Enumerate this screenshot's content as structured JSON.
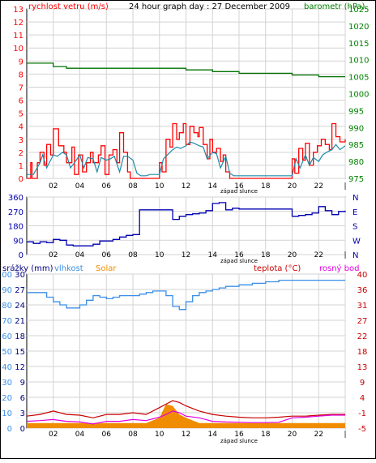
{
  "colors": {
    "wind_avg": "#1e8aa8",
    "wind_gust": "#ff0000",
    "pressure": "#007000",
    "direction": "#0000b0",
    "humidity": "#3a8ee8",
    "temperature": "#c80000",
    "dewpoint": "#e000e0",
    "solar": "#f08c00",
    "rain": "#000080",
    "left_axis_1": "#ff0000",
    "right_axis_1": "#008000",
    "left_axis_3": "#3a8ee8",
    "right_axis_3": "#c80000"
  },
  "chart_data": [
    {
      "type": "line",
      "title": "24 hour graph day : 27 December 2009",
      "left_label": "rychlost vetru (m/s)",
      "right_label": "barometr (hPa)",
      "xlabel": "západ slunce",
      "x_ticks": [
        "02",
        "04",
        "06",
        "08",
        "10",
        "12",
        "14",
        "16",
        "18",
        "20",
        "22",
        "|"
      ],
      "ylim_left": [
        0,
        13
      ],
      "yticks_left": [
        "0",
        "1",
        "2",
        "3",
        "4",
        "5",
        "6",
        "7",
        "8",
        "9",
        "10",
        "11",
        "12",
        "13"
      ],
      "ylim_right": [
        975,
        1025
      ],
      "yticks_right": [
        "975",
        "980",
        "985",
        "990",
        "995",
        "1000",
        "1005",
        "1010",
        "1015",
        "1020",
        "1025"
      ],
      "grid": true,
      "series": [
        {
          "key": "wind_avg",
          "x": [
            0,
            0.3,
            0.5,
            1,
            1.2,
            1.5,
            2,
            2.3,
            2.7,
            3,
            3.3,
            3.6,
            4,
            4.3,
            4.6,
            5,
            5.3,
            5.6,
            6,
            6.3,
            6.6,
            7,
            7.3,
            7.6,
            8,
            8.3,
            8.6,
            9,
            9.3,
            9.6,
            10,
            10.3,
            10.6,
            11,
            11.3,
            11.6,
            12,
            12.3,
            12.6,
            13,
            13.3,
            13.6,
            14,
            14.3,
            14.6,
            15,
            15.3,
            15.6,
            16,
            16.5,
            17,
            17.5,
            18,
            18.5,
            19,
            19.5,
            20,
            20.3,
            20.6,
            21,
            21.3,
            21.6,
            22,
            22.3,
            22.6,
            23,
            23.3,
            23.6,
            24
          ],
          "y": [
            0.3,
            0.3,
            0.3,
            1.2,
            1.8,
            0.8,
            1.8,
            1.7,
            2,
            1.8,
            0.8,
            1.2,
            1.8,
            0.8,
            1.6,
            1.5,
            0.5,
            1.6,
            1.4,
            1.5,
            1.7,
            0.5,
            1.7,
            1.7,
            1.4,
            0.4,
            0.2,
            0.2,
            0.3,
            0.3,
            0.3,
            1.5,
            1.8,
            2.2,
            2.4,
            2.3,
            2.5,
            2.8,
            2.7,
            2.5,
            2.4,
            1.5,
            2,
            1.9,
            0.8,
            1.7,
            0.4,
            0.2,
            0.2,
            0.2,
            0.2,
            0.2,
            0.2,
            0.2,
            0.2,
            0.2,
            0.2,
            1.5,
            0.8,
            1.8,
            1,
            1.6,
            1.3,
            1.8,
            2,
            2.2,
            2.6,
            2.2,
            2.5
          ]
        },
        {
          "key": "wind_gust",
          "x": [
            0,
            0.3,
            0.4,
            0.8,
            1,
            1.3,
            1.5,
            1.8,
            2,
            2.4,
            2.8,
            3,
            3.4,
            3.6,
            3.9,
            4.2,
            4.5,
            4.8,
            5,
            5.4,
            5.6,
            5.9,
            6.2,
            6.5,
            6.8,
            7,
            7.3,
            7.6,
            7.8,
            8.2,
            8.5,
            9,
            9.5,
            10,
            10.2,
            10.5,
            10.8,
            11,
            11.3,
            11.5,
            11.8,
            12,
            12.3,
            12.6,
            12.9,
            13,
            13.3,
            13.6,
            13.8,
            14,
            14.3,
            14.6,
            14.8,
            15,
            15.3,
            15.6,
            16,
            17,
            18,
            19,
            20,
            20.2,
            20.5,
            20.8,
            21,
            21.3,
            21.6,
            21.9,
            22.2,
            22.5,
            22.8,
            23,
            23.3,
            23.6,
            24
          ],
          "y": [
            0,
            1.2,
            0,
            1.2,
            2,
            1,
            2.6,
            1.8,
            3.8,
            2.5,
            2,
            1.2,
            2.4,
            0.3,
            1.8,
            0.5,
            1.2,
            2,
            1.2,
            1.8,
            2.5,
            0.3,
            1.8,
            2.2,
            1.2,
            3.5,
            2,
            0.5,
            0,
            0,
            0,
            0,
            0,
            1.2,
            0.5,
            3,
            2.4,
            4.2,
            3,
            3.5,
            4.2,
            2.6,
            4,
            3.5,
            3.2,
            3.9,
            2.6,
            1.5,
            3,
            2,
            2.3,
            1.3,
            1.8,
            0.5,
            0,
            0,
            0,
            0,
            0,
            0,
            1.5,
            0.4,
            2.3,
            1.4,
            2.7,
            1,
            2,
            2.5,
            3,
            2.6,
            2.2,
            4.2,
            3.2,
            2.8,
            3
          ]
        },
        {
          "key": "pressure",
          "x": [
            0,
            1,
            2,
            3,
            4,
            6,
            8,
            10,
            12,
            14,
            16,
            18,
            20,
            22,
            24
          ],
          "y": [
            1009,
            1009,
            1008,
            1007.5,
            1007.5,
            1007.5,
            1007.5,
            1007.5,
            1007,
            1006.5,
            1006,
            1006,
            1005.5,
            1005,
            1005
          ]
        }
      ]
    },
    {
      "type": "line",
      "xlabel": "západ slunce",
      "x_ticks": [
        "02",
        "04",
        "06",
        "08",
        "10",
        "12",
        "14",
        "16",
        "18",
        "20",
        "22",
        "|"
      ],
      "ylim_left": [
        0,
        360
      ],
      "yticks_left": [
        "0",
        "90",
        "180",
        "270",
        "360"
      ],
      "yticks_right": [
        "N",
        "W",
        "S",
        "E",
        "N"
      ],
      "grid": true,
      "series": [
        {
          "key": "direction",
          "x": [
            0,
            0.5,
            1,
            1.5,
            2,
            2.5,
            3,
            3.5,
            4,
            4.5,
            5,
            5.5,
            6,
            6.5,
            7,
            7.5,
            8,
            8.5,
            9,
            9.5,
            10,
            10.5,
            11,
            11.5,
            12,
            12.5,
            13,
            13.5,
            14,
            14.5,
            15,
            15.5,
            16,
            16.5,
            17,
            17.5,
            18,
            18.5,
            19,
            19.5,
            20,
            20.5,
            21,
            21.5,
            22,
            22.5,
            23,
            23.5,
            24
          ],
          "y": [
            80,
            70,
            80,
            75,
            95,
            90,
            60,
            55,
            55,
            55,
            65,
            85,
            85,
            95,
            110,
            120,
            125,
            280,
            280,
            280,
            280,
            280,
            220,
            240,
            250,
            255,
            260,
            275,
            320,
            325,
            280,
            290,
            285,
            285,
            285,
            285,
            285,
            285,
            285,
            285,
            240,
            245,
            250,
            260,
            300,
            275,
            250,
            270,
            275
          ]
        }
      ]
    },
    {
      "type": "line",
      "xlabel": "západ slunce",
      "x_ticks": [
        "02",
        "04",
        "06",
        "08",
        "10",
        "12",
        "14",
        "16",
        "18",
        "20",
        "22",
        "|"
      ],
      "legend": {
        "rain": "srážky (mm)",
        "humidity": "vlhkost",
        "solar": "Solar",
        "temperature": "teplota (°C)",
        "dewpoint": "rosný bod"
      },
      "ylim_left": [
        0,
        100
      ],
      "yticks_left": [
        "0",
        "10",
        "20",
        "30",
        "40",
        "50",
        "60",
        "70",
        "80",
        "90",
        "100"
      ],
      "yticks_rain": [
        "0",
        "3",
        "6",
        "9",
        "12",
        "15",
        "18",
        "21",
        "24",
        "27",
        "30"
      ],
      "ylim_right": [
        -5,
        40
      ],
      "yticks_right": [
        "-5",
        "-1",
        "4",
        "9",
        "13",
        "18",
        "22",
        "27",
        "31",
        "36",
        "40"
      ],
      "grid": true,
      "series": [
        {
          "key": "humidity",
          "x": [
            0,
            0.5,
            1,
            1.5,
            2,
            2.5,
            3,
            3.5,
            4,
            4.5,
            5,
            5.5,
            6,
            6.5,
            7,
            7.5,
            8,
            8.5,
            9,
            9.5,
            10,
            10.5,
            11,
            11.5,
            12,
            12.5,
            13,
            13.5,
            14,
            14.5,
            15,
            15.5,
            16,
            16.5,
            17,
            17.5,
            18,
            18.5,
            19,
            19.5,
            20,
            21,
            22,
            23,
            24
          ],
          "y": [
            88,
            88,
            88,
            85,
            82,
            80,
            78,
            78,
            80,
            83,
            86,
            85,
            84,
            85,
            86,
            86,
            86,
            87,
            88,
            89,
            89,
            86,
            79,
            77,
            82,
            86,
            88,
            89,
            90,
            91,
            92,
            92,
            93,
            93,
            94,
            94,
            95,
            95,
            96,
            96,
            96,
            96,
            96,
            96,
            96
          ]
        },
        {
          "key": "temperature",
          "x": [
            0,
            1,
            2,
            3,
            4,
            5,
            6,
            7,
            8,
            9,
            10,
            10.5,
            11,
            11.5,
            12,
            13,
            14,
            15,
            16,
            17,
            18,
            19,
            20,
            21,
            22,
            23,
            24
          ],
          "y": [
            -1.5,
            -1,
            0,
            -1,
            -1.2,
            -2,
            -1,
            -1,
            -0.5,
            -1,
            1,
            2,
            3,
            2.5,
            1.5,
            0,
            -1,
            -1.5,
            -1.8,
            -2,
            -2,
            -1.8,
            -1.5,
            -1.5,
            -1.2,
            -1,
            -1
          ]
        },
        {
          "key": "dewpoint",
          "x": [
            0,
            1,
            2,
            3,
            4,
            5,
            6,
            7,
            8,
            9,
            10,
            10.5,
            11,
            11.5,
            12,
            13,
            14,
            15,
            16,
            17,
            18,
            19,
            20,
            21,
            22,
            23,
            24
          ],
          "y": [
            -3,
            -2.8,
            -2.5,
            -3,
            -3.2,
            -3.8,
            -3,
            -3,
            -2.5,
            -2.8,
            -1.8,
            -1,
            0,
            -0.5,
            -1.5,
            -2,
            -3,
            -3.2,
            -3.3,
            -3.4,
            -3.4,
            -3.3,
            -2,
            -1.8,
            -1.5,
            -1.2,
            -1.2
          ]
        },
        {
          "key": "solar",
          "x": [
            0,
            1,
            2,
            3,
            4,
            5,
            6,
            7,
            8,
            9,
            10,
            10.5,
            11,
            11.5,
            12,
            13,
            14,
            15,
            16,
            17,
            18,
            19,
            20,
            21,
            22,
            23,
            24
          ],
          "y": [
            -3.5,
            -3.5,
            -3.5,
            -3.5,
            -3.5,
            -3.5,
            -3.5,
            -3.5,
            -3.5,
            -3.5,
            -2,
            2,
            1.5,
            -1,
            -2,
            -3.5,
            -3.5,
            -3.5,
            -3.5,
            -3.5,
            -3.5,
            -3.5,
            -3.5,
            -3.5,
            -3.5,
            -3.5,
            -3.5
          ]
        }
      ]
    }
  ]
}
